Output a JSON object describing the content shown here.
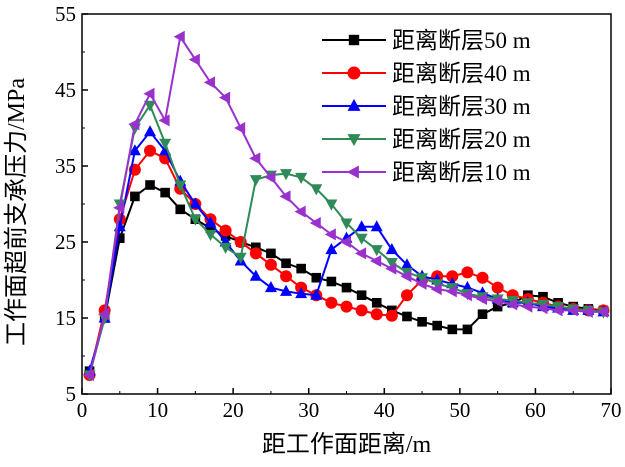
{
  "chart_data": {
    "type": "line",
    "xlabel": "距工作面距离/m",
    "ylabel": "工作面超前支承压力/MPa",
    "xlim": [
      0,
      70
    ],
    "ylim": [
      5,
      55
    ],
    "xticks": [
      0,
      10,
      20,
      30,
      40,
      50,
      60,
      70
    ],
    "yticks": [
      5,
      15,
      25,
      35,
      45,
      55
    ],
    "legend_position": "top-right",
    "grid": false,
    "series": [
      {
        "name": "距离断层50 m",
        "color": "#000000",
        "marker": "square",
        "x": [
          1,
          3,
          5,
          7,
          9,
          11,
          13,
          15,
          17,
          19,
          21,
          23,
          25,
          27,
          29,
          31,
          33,
          35,
          37,
          39,
          41,
          43,
          45,
          47,
          49,
          51,
          53,
          55,
          57,
          59,
          61,
          63,
          65,
          67,
          69
        ],
        "y": [
          8,
          15,
          25.5,
          31,
          32.5,
          31.5,
          29.3,
          28,
          26.8,
          25.8,
          25,
          24.3,
          23.5,
          22.2,
          21.5,
          20.3,
          19.8,
          19,
          18,
          17,
          16,
          15.2,
          14.5,
          14,
          13.5,
          13.5,
          15.5,
          16.5,
          17,
          18,
          17.8,
          17,
          16.5,
          16.2,
          16
        ]
      },
      {
        "name": "距离断层40 m",
        "color": "#ff0000",
        "marker": "circle",
        "x": [
          1,
          3,
          5,
          7,
          9,
          11,
          13,
          15,
          17,
          19,
          21,
          23,
          25,
          27,
          29,
          31,
          33,
          35,
          37,
          39,
          41,
          43,
          45,
          47,
          49,
          51,
          53,
          55,
          57,
          59,
          61,
          63,
          65,
          67,
          69
        ],
        "y": [
          7.5,
          16,
          28,
          34.5,
          37,
          36,
          32,
          30,
          28,
          26.5,
          25,
          23.5,
          22,
          20.5,
          19,
          18,
          17,
          16.5,
          16,
          15.5,
          15.3,
          18,
          20,
          20.5,
          20.5,
          21,
          20.3,
          19,
          18,
          17.5,
          17,
          16.5,
          16.2,
          16,
          16
        ]
      },
      {
        "name": "距离断层30 m",
        "color": "#0000ff",
        "marker": "triangle-up",
        "x": [
          1,
          3,
          5,
          7,
          9,
          11,
          13,
          15,
          17,
          19,
          21,
          23,
          25,
          27,
          29,
          31,
          33,
          35,
          37,
          39,
          41,
          43,
          45,
          47,
          49,
          51,
          53,
          55,
          57,
          59,
          61,
          63,
          65,
          67,
          69
        ],
        "y": [
          8,
          15,
          27,
          37,
          39.5,
          37,
          33,
          30,
          27.5,
          25,
          22.5,
          20.5,
          19,
          18.5,
          18.2,
          18,
          24,
          25.5,
          27,
          27,
          24,
          22,
          20.5,
          20,
          19.5,
          19,
          18.3,
          17.5,
          17,
          17,
          16.5,
          16.3,
          16,
          16,
          15.8
        ]
      },
      {
        "name": "距离断层20 m",
        "color": "#2e8b57",
        "marker": "triangle-down",
        "x": [
          1,
          3,
          5,
          7,
          9,
          11,
          13,
          15,
          17,
          19,
          21,
          23,
          25,
          27,
          29,
          31,
          33,
          35,
          37,
          39,
          41,
          43,
          45,
          47,
          49,
          51,
          53,
          55,
          57,
          59,
          61,
          63,
          65,
          67,
          69
        ],
        "y": [
          7.5,
          15,
          30,
          40,
          43,
          38,
          32.5,
          28,
          26,
          24.3,
          23,
          33.2,
          33.8,
          34,
          33.5,
          32,
          30,
          27.5,
          25.5,
          24,
          22.3,
          21,
          20.3,
          19.5,
          19,
          18.2,
          17.8,
          17.5,
          17.3,
          17,
          16.8,
          16.5,
          16.2,
          16,
          15.8
        ]
      },
      {
        "name": "距离断层10 m",
        "color": "#9932cc",
        "marker": "triangle-left",
        "x": [
          1,
          3,
          5,
          7,
          9,
          11,
          13,
          15,
          17,
          19,
          21,
          23,
          25,
          27,
          29,
          31,
          33,
          35,
          37,
          39,
          41,
          43,
          45,
          47,
          49,
          51,
          53,
          55,
          57,
          59,
          61,
          63,
          65,
          67,
          69
        ],
        "y": [
          7.5,
          15.5,
          29.5,
          40.5,
          44.5,
          41,
          52,
          49,
          46,
          44,
          40,
          36,
          33.5,
          31,
          29,
          27.5,
          26,
          25,
          23.5,
          22.5,
          21.5,
          20.5,
          19.5,
          18.8,
          18.5,
          18,
          17.5,
          17.2,
          16.8,
          16.5,
          16.3,
          16,
          16,
          15.8,
          15.8
        ]
      }
    ]
  }
}
